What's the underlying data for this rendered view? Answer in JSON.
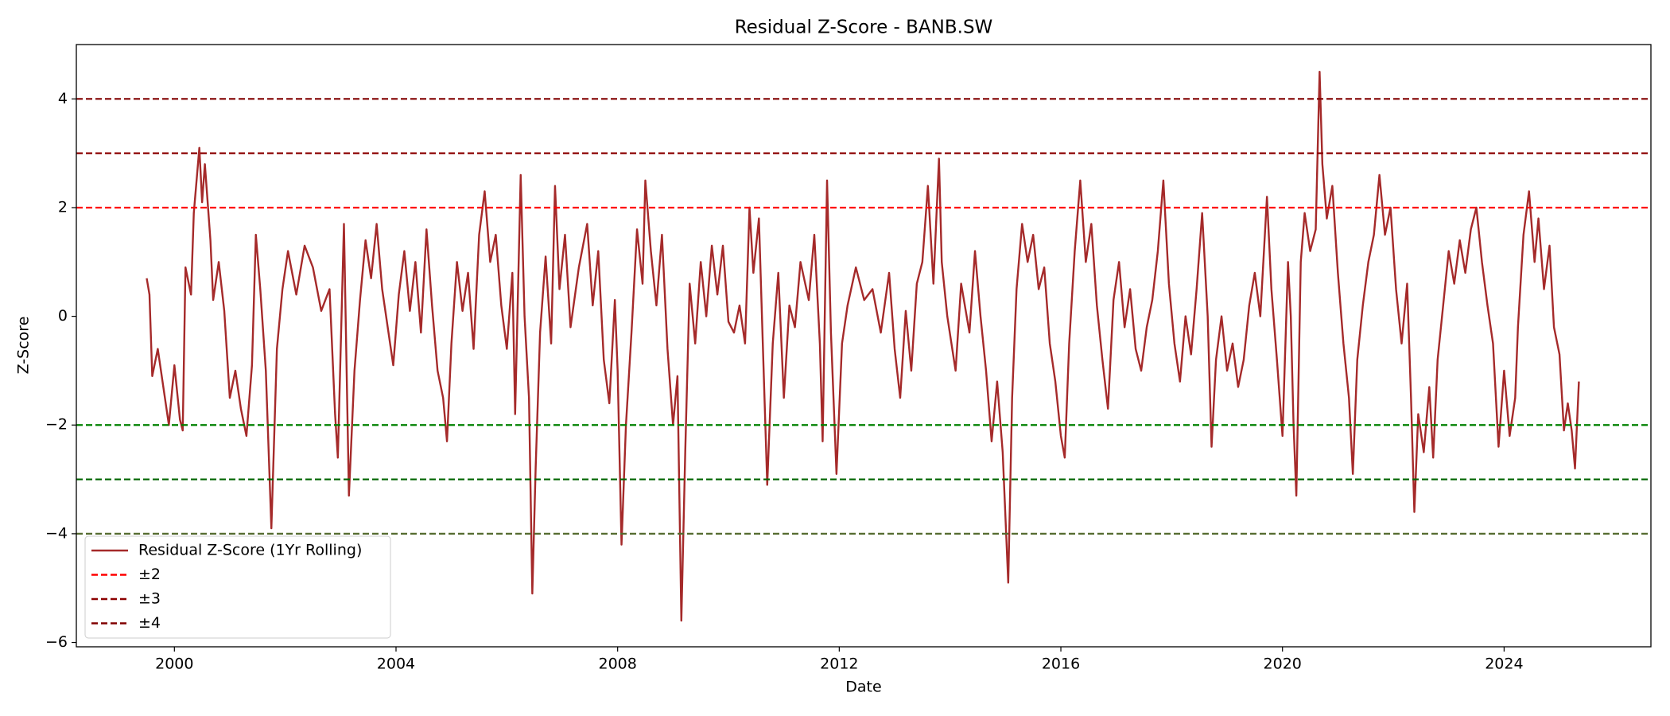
{
  "chart_data": {
    "type": "line",
    "title": "Residual Z-Score - BANB.SW",
    "xlabel": "Date",
    "ylabel": "Z-Score",
    "xlim": [
      1998.23,
      2026.65
    ],
    "ylim": [
      -6.08,
      5.0
    ],
    "xticks": [
      2000,
      2004,
      2008,
      2012,
      2016,
      2020,
      2024
    ],
    "yticks": [
      {
        "value": -6,
        "label": "−6"
      },
      {
        "value": -4,
        "label": "−4"
      },
      {
        "value": -2,
        "label": "−2"
      },
      0,
      2,
      4
    ],
    "grid": false,
    "legend": "lower left",
    "series": [
      {
        "name": "Residual Z-Score (1Yr Rolling)",
        "color": "#a52a2a",
        "x": [
          1999.5,
          1999.55,
          1999.6,
          1999.7,
          1999.8,
          1999.9,
          2000.0,
          2000.1,
          2000.15,
          2000.2,
          2000.3,
          2000.35,
          2000.45,
          2000.5,
          2000.55,
          2000.65,
          2000.7,
          2000.8,
          2000.9,
          2001.0,
          2001.1,
          2001.2,
          2001.3,
          2001.4,
          2001.47,
          2001.55,
          2001.65,
          2001.75,
          2001.85,
          2001.95,
          2002.05,
          2002.2,
          2002.35,
          2002.5,
          2002.65,
          2002.8,
          2002.9,
          2002.95,
          2003.06,
          2003.15,
          2003.25,
          2003.35,
          2003.45,
          2003.55,
          2003.65,
          2003.75,
          2003.85,
          2003.95,
          2004.05,
          2004.15,
          2004.25,
          2004.35,
          2004.45,
          2004.55,
          2004.65,
          2004.75,
          2004.85,
          2004.92,
          2005.0,
          2005.1,
          2005.2,
          2005.3,
          2005.4,
          2005.5,
          2005.6,
          2005.7,
          2005.8,
          2005.9,
          2006.0,
          2006.1,
          2006.15,
          2006.25,
          2006.32,
          2006.4,
          2006.46,
          2006.52,
          2006.6,
          2006.7,
          2006.8,
          2006.87,
          2006.95,
          2007.05,
          2007.15,
          2007.3,
          2007.45,
          2007.55,
          2007.65,
          2007.75,
          2007.85,
          2007.95,
          2008.0,
          2008.07,
          2008.15,
          2008.25,
          2008.35,
          2008.45,
          2008.5,
          2008.6,
          2008.7,
          2008.8,
          2008.9,
          2009.0,
          2009.08,
          2009.15,
          2009.22,
          2009.3,
          2009.4,
          2009.5,
          2009.6,
          2009.7,
          2009.8,
          2009.9,
          2010.0,
          2010.1,
          2010.2,
          2010.3,
          2010.38,
          2010.45,
          2010.55,
          2010.62,
          2010.7,
          2010.8,
          2010.9,
          2011.0,
          2011.1,
          2011.2,
          2011.3,
          2011.45,
          2011.55,
          2011.65,
          2011.7,
          2011.78,
          2011.85,
          2011.95,
          2012.05,
          2012.15,
          2012.3,
          2012.45,
          2012.6,
          2012.75,
          2012.9,
          2013.0,
          2013.1,
          2013.2,
          2013.3,
          2013.4,
          2013.5,
          2013.6,
          2013.7,
          2013.8,
          2013.85,
          2013.95,
          2014.1,
          2014.2,
          2014.35,
          2014.45,
          2014.55,
          2014.65,
          2014.75,
          2014.85,
          2014.95,
          2015.05,
          2015.12,
          2015.2,
          2015.3,
          2015.4,
          2015.5,
          2015.6,
          2015.7,
          2015.8,
          2015.9,
          2016.0,
          2016.07,
          2016.15,
          2016.25,
          2016.35,
          2016.45,
          2016.55,
          2016.65,
          2016.75,
          2016.85,
          2016.95,
          2017.05,
          2017.15,
          2017.25,
          2017.35,
          2017.45,
          2017.55,
          2017.65,
          2017.75,
          2017.85,
          2017.95,
          2018.05,
          2018.15,
          2018.25,
          2018.35,
          2018.45,
          2018.55,
          2018.65,
          2018.72,
          2018.8,
          2018.9,
          2019.0,
          2019.1,
          2019.2,
          2019.3,
          2019.4,
          2019.5,
          2019.6,
          2019.72,
          2019.8,
          2019.9,
          2020.0,
          2020.1,
          2020.15,
          2020.2,
          2020.25,
          2020.33,
          2020.4,
          2020.5,
          2020.6,
          2020.67,
          2020.72,
          2020.8,
          2020.9,
          2021.0,
          2021.1,
          2021.2,
          2021.27,
          2021.35,
          2021.45,
          2021.55,
          2021.65,
          2021.75,
          2021.85,
          2021.95,
          2022.05,
          2022.15,
          2022.25,
          2022.32,
          2022.38,
          2022.45,
          2022.55,
          2022.65,
          2022.72,
          2022.8,
          2022.9,
          2023.0,
          2023.1,
          2023.2,
          2023.3,
          2023.4,
          2023.5,
          2023.6,
          2023.7,
          2023.8,
          2023.9,
          2024.0,
          2024.1,
          2024.2,
          2024.25,
          2024.35,
          2024.45,
          2024.55,
          2024.62,
          2024.72,
          2024.82,
          2024.9,
          2025.0,
          2025.08,
          2025.15,
          2025.22,
          2025.28,
          2025.35
        ],
        "values": [
          0.7,
          0.4,
          -1.1,
          -0.6,
          -1.3,
          -2.0,
          -0.9,
          -1.9,
          -2.1,
          0.9,
          0.4,
          1.9,
          3.1,
          2.1,
          2.8,
          1.4,
          0.3,
          1.0,
          0.1,
          -1.5,
          -1.0,
          -1.7,
          -2.2,
          -0.9,
          1.5,
          0.5,
          -1.0,
          -3.9,
          -0.6,
          0.5,
          1.2,
          0.4,
          1.3,
          0.9,
          0.1,
          0.5,
          -1.8,
          -2.6,
          1.7,
          -3.3,
          -1.0,
          0.3,
          1.4,
          0.7,
          1.7,
          0.5,
          -0.2,
          -0.9,
          0.4,
          1.2,
          0.1,
          1.0,
          -0.3,
          1.6,
          0.2,
          -1.0,
          -1.5,
          -2.3,
          -0.5,
          1.0,
          0.1,
          0.8,
          -0.6,
          1.5,
          2.3,
          1.0,
          1.5,
          0.2,
          -0.6,
          0.8,
          -1.8,
          2.6,
          0.0,
          -1.5,
          -5.1,
          -2.8,
          -0.3,
          1.1,
          -0.5,
          2.4,
          0.5,
          1.5,
          -0.2,
          0.9,
          1.7,
          0.2,
          1.2,
          -0.8,
          -1.6,
          0.3,
          -1.0,
          -4.2,
          -2.0,
          -0.3,
          1.6,
          0.6,
          2.5,
          1.2,
          0.2,
          1.5,
          -0.6,
          -2.0,
          -1.1,
          -5.6,
          -2.5,
          0.6,
          -0.5,
          1.0,
          0.0,
          1.3,
          0.4,
          1.3,
          -0.1,
          -0.3,
          0.2,
          -0.5,
          2.0,
          0.8,
          1.8,
          -0.5,
          -3.1,
          -0.5,
          0.8,
          -1.5,
          0.2,
          -0.2,
          1.0,
          0.3,
          1.5,
          -0.5,
          -2.3,
          2.5,
          -0.3,
          -2.9,
          -0.5,
          0.2,
          0.9,
          0.3,
          0.5,
          -0.3,
          0.8,
          -0.6,
          -1.5,
          0.1,
          -1.0,
          0.6,
          1.0,
          2.4,
          0.6,
          2.9,
          1.0,
          0.0,
          -1.0,
          0.6,
          -0.3,
          1.2,
          0.0,
          -1.0,
          -2.3,
          -1.2,
          -2.5,
          -4.9,
          -1.5,
          0.5,
          1.7,
          1.0,
          1.5,
          0.5,
          0.9,
          -0.5,
          -1.2,
          -2.2,
          -2.6,
          -0.5,
          1.2,
          2.5,
          1.0,
          1.7,
          0.2,
          -0.8,
          -1.7,
          0.3,
          1.0,
          -0.2,
          0.5,
          -0.6,
          -1.0,
          -0.2,
          0.3,
          1.2,
          2.5,
          0.6,
          -0.5,
          -1.2,
          0.0,
          -0.7,
          0.5,
          1.9,
          0.0,
          -2.4,
          -0.8,
          0.0,
          -1.0,
          -0.5,
          -1.3,
          -0.8,
          0.2,
          0.8,
          0.0,
          2.2,
          0.5,
          -0.8,
          -2.2,
          1.0,
          0.0,
          -2.0,
          -3.3,
          1.0,
          1.9,
          1.2,
          1.6,
          4.5,
          2.8,
          1.8,
          2.4,
          0.8,
          -0.5,
          -1.5,
          -2.9,
          -0.8,
          0.2,
          1.0,
          1.5,
          2.6,
          1.5,
          2.0,
          0.5,
          -0.5,
          0.6,
          -1.5,
          -3.6,
          -1.8,
          -2.5,
          -1.3,
          -2.6,
          -0.8,
          0.2,
          1.2,
          0.6,
          1.4,
          0.8,
          1.6,
          2.0,
          1.0,
          0.2,
          -0.5,
          -2.4,
          -1.0,
          -2.2,
          -1.5,
          -0.2,
          1.5,
          2.3,
          1.0,
          1.8,
          0.5,
          1.3,
          -0.2,
          -0.7,
          -2.1,
          -1.6,
          -2.1,
          -2.8,
          -1.2
        ]
      }
    ],
    "thresholds": [
      {
        "name": "±2",
        "levels": [
          2,
          -2
        ],
        "colors": [
          "#ff0000",
          "#008000"
        ]
      },
      {
        "name": "±3",
        "levels": [
          3,
          -3
        ],
        "colors": [
          "#8b0000",
          "#006400"
        ]
      },
      {
        "name": "±4",
        "levels": [
          4,
          -4
        ],
        "colors": [
          "#800000",
          "#556b2f"
        ]
      }
    ]
  }
}
